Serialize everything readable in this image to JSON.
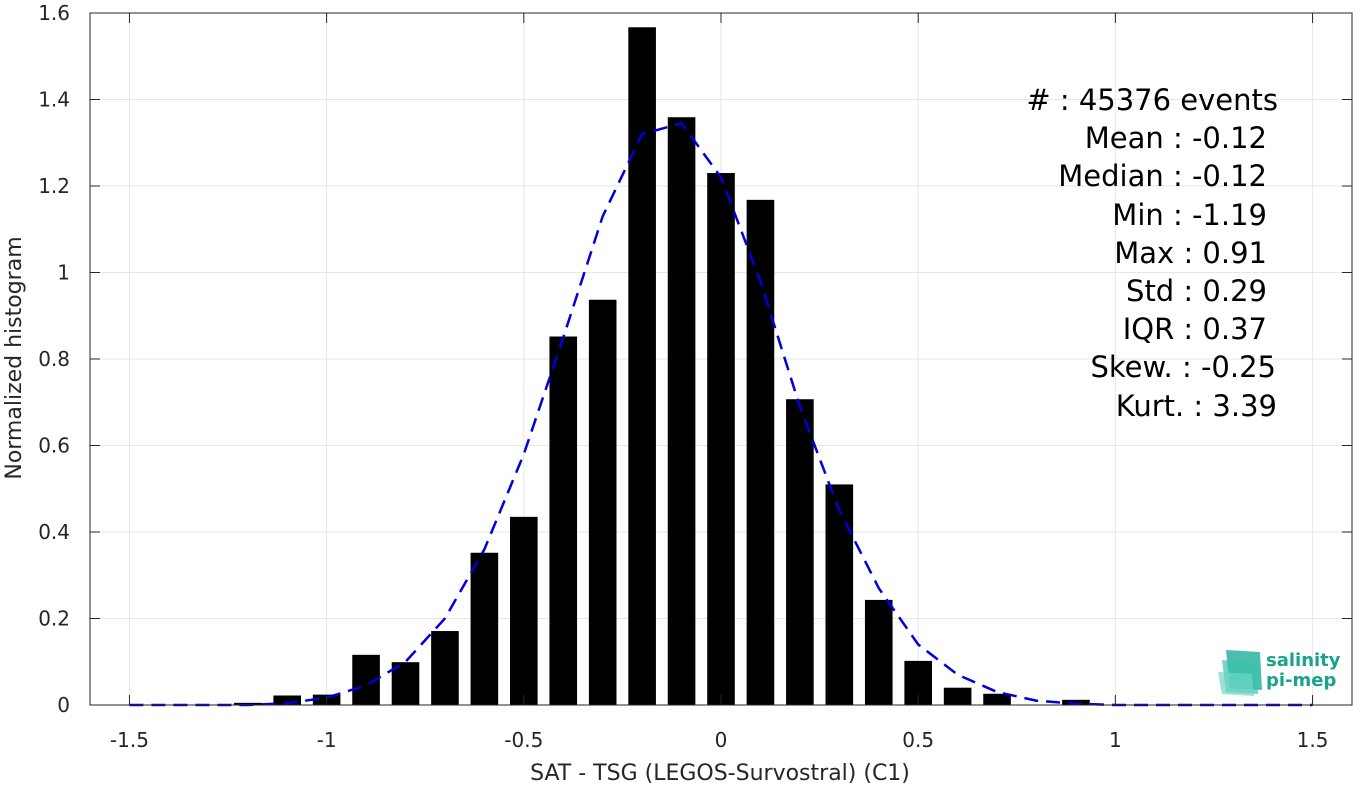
{
  "chart_data": {
    "type": "bar",
    "xlabel": "SAT - TSG (LEGOS-Survostral) (C1)",
    "ylabel": "Normalized histogram",
    "xlim": [
      -1.6,
      1.6
    ],
    "ylim": [
      0,
      1.6
    ],
    "x_ticks": [
      "-1.5",
      "-1",
      "-0.5",
      "0",
      "0.5",
      "1",
      "1.5"
    ],
    "y_ticks": [
      "0",
      "0.2",
      "0.4",
      "0.6",
      "0.8",
      "1",
      "1.2",
      "1.4",
      "1.6"
    ],
    "grid": true,
    "bar_color": "#000000",
    "bar_width": 0.07,
    "bars": {
      "x": [
        -1.2,
        -1.1,
        -1.0,
        -0.9,
        -0.8,
        -0.7,
        -0.6,
        -0.5,
        -0.4,
        -0.3,
        -0.2,
        -0.1,
        0.0,
        0.1,
        0.2,
        0.3,
        0.4,
        0.5,
        0.6,
        0.7,
        0.8,
        0.9
      ],
      "values": [
        0.005,
        0.022,
        0.024,
        0.116,
        0.099,
        0.171,
        0.352,
        0.435,
        0.852,
        0.937,
        1.567,
        1.359,
        1.23,
        1.168,
        0.707,
        0.51,
        0.243,
        0.102,
        0.04,
        0.026,
        0.0,
        0.012
      ]
    },
    "fit_curve": {
      "style": "dashed",
      "color": "#0000dd",
      "x": [
        -1.5,
        -1.4,
        -1.3,
        -1.2,
        -1.1,
        -1.0,
        -0.9,
        -0.8,
        -0.7,
        -0.6,
        -0.5,
        -0.4,
        -0.3,
        -0.2,
        -0.1,
        0.0,
        0.1,
        0.2,
        0.3,
        0.4,
        0.5,
        0.6,
        0.7,
        0.8,
        0.9,
        1.0,
        1.1,
        1.2,
        1.3,
        1.4,
        1.5
      ],
      "y": [
        0.0,
        0.0,
        0.0,
        0.0,
        0.004,
        0.017,
        0.045,
        0.1,
        0.2,
        0.36,
        0.58,
        0.85,
        1.13,
        1.32,
        1.345,
        1.22,
        0.98,
        0.69,
        0.45,
        0.27,
        0.14,
        0.07,
        0.03,
        0.01,
        0.003,
        0.0,
        0.0,
        0.0,
        0.0,
        0.0,
        0.0
      ]
    }
  },
  "stats": {
    "count": "#  : 45376 events",
    "mean": "Mean : -0.12",
    "median": "Median : -0.12",
    "min": "Min : -1.19",
    "max": "Max : 0.91",
    "std": "Std : 0.29",
    "iqr": "IQR : 0.37",
    "skew": "Skew. : -0.25",
    "kurt": "Kurt. : 3.39"
  },
  "logo": {
    "line1": "salinity",
    "line2": "pi-mep",
    "color": "#1aa38c"
  }
}
